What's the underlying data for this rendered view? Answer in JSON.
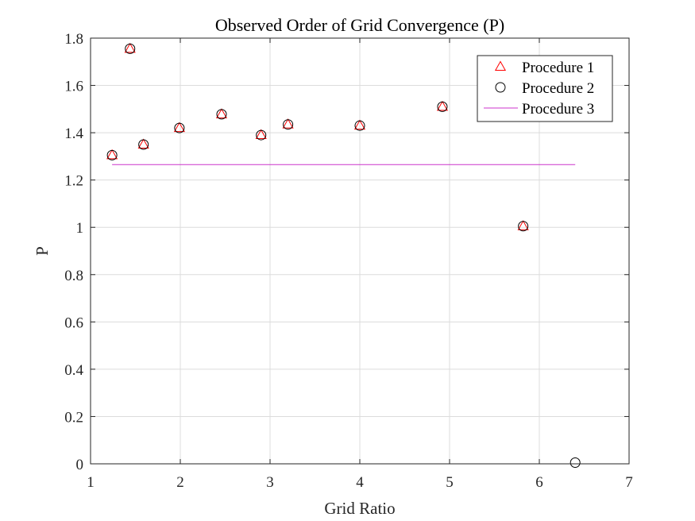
{
  "chart_data": {
    "type": "scatter",
    "title": "Observed Order of Grid Convergence (P)",
    "xlabel": "Grid Ratio",
    "ylabel": "P",
    "xlim": [
      1,
      7
    ],
    "ylim": [
      0,
      1.8
    ],
    "xticks": [
      1,
      2,
      3,
      4,
      5,
      6,
      7
    ],
    "xtick_labels": [
      "1",
      "2",
      "3",
      "4",
      "5",
      "6",
      "7"
    ],
    "yticks": [
      0,
      0.2,
      0.4,
      0.6,
      0.8,
      1,
      1.2,
      1.4,
      1.6,
      1.8
    ],
    "ytick_labels": [
      "0",
      "0.2",
      "0.4",
      "0.6",
      "0.8",
      "1",
      "1.2",
      "1.4",
      "1.6",
      "1.8"
    ],
    "grid": true,
    "legend_position": "top-right",
    "series": [
      {
        "name": "Procedure 1",
        "marker": "triangle",
        "color": "#ff0000",
        "x": [
          1.24,
          1.44,
          1.59,
          1.99,
          2.46,
          2.9,
          3.2,
          4.0,
          4.92,
          5.82
        ],
        "y": [
          1.305,
          1.755,
          1.35,
          1.42,
          1.478,
          1.39,
          1.435,
          1.43,
          1.51,
          1.005
        ]
      },
      {
        "name": "Procedure 2",
        "marker": "circle",
        "color": "#000000",
        "x": [
          1.24,
          1.44,
          1.59,
          1.99,
          2.46,
          2.9,
          3.2,
          4.0,
          4.92,
          5.82,
          6.4
        ],
        "y": [
          1.305,
          1.755,
          1.35,
          1.42,
          1.478,
          1.39,
          1.435,
          1.43,
          1.51,
          1.005,
          0.005
        ]
      },
      {
        "name": "Procedure 3",
        "marker": "line",
        "color": "#cc33cc",
        "x": [
          1.24,
          6.4
        ],
        "y": [
          1.265,
          1.265
        ]
      }
    ]
  }
}
